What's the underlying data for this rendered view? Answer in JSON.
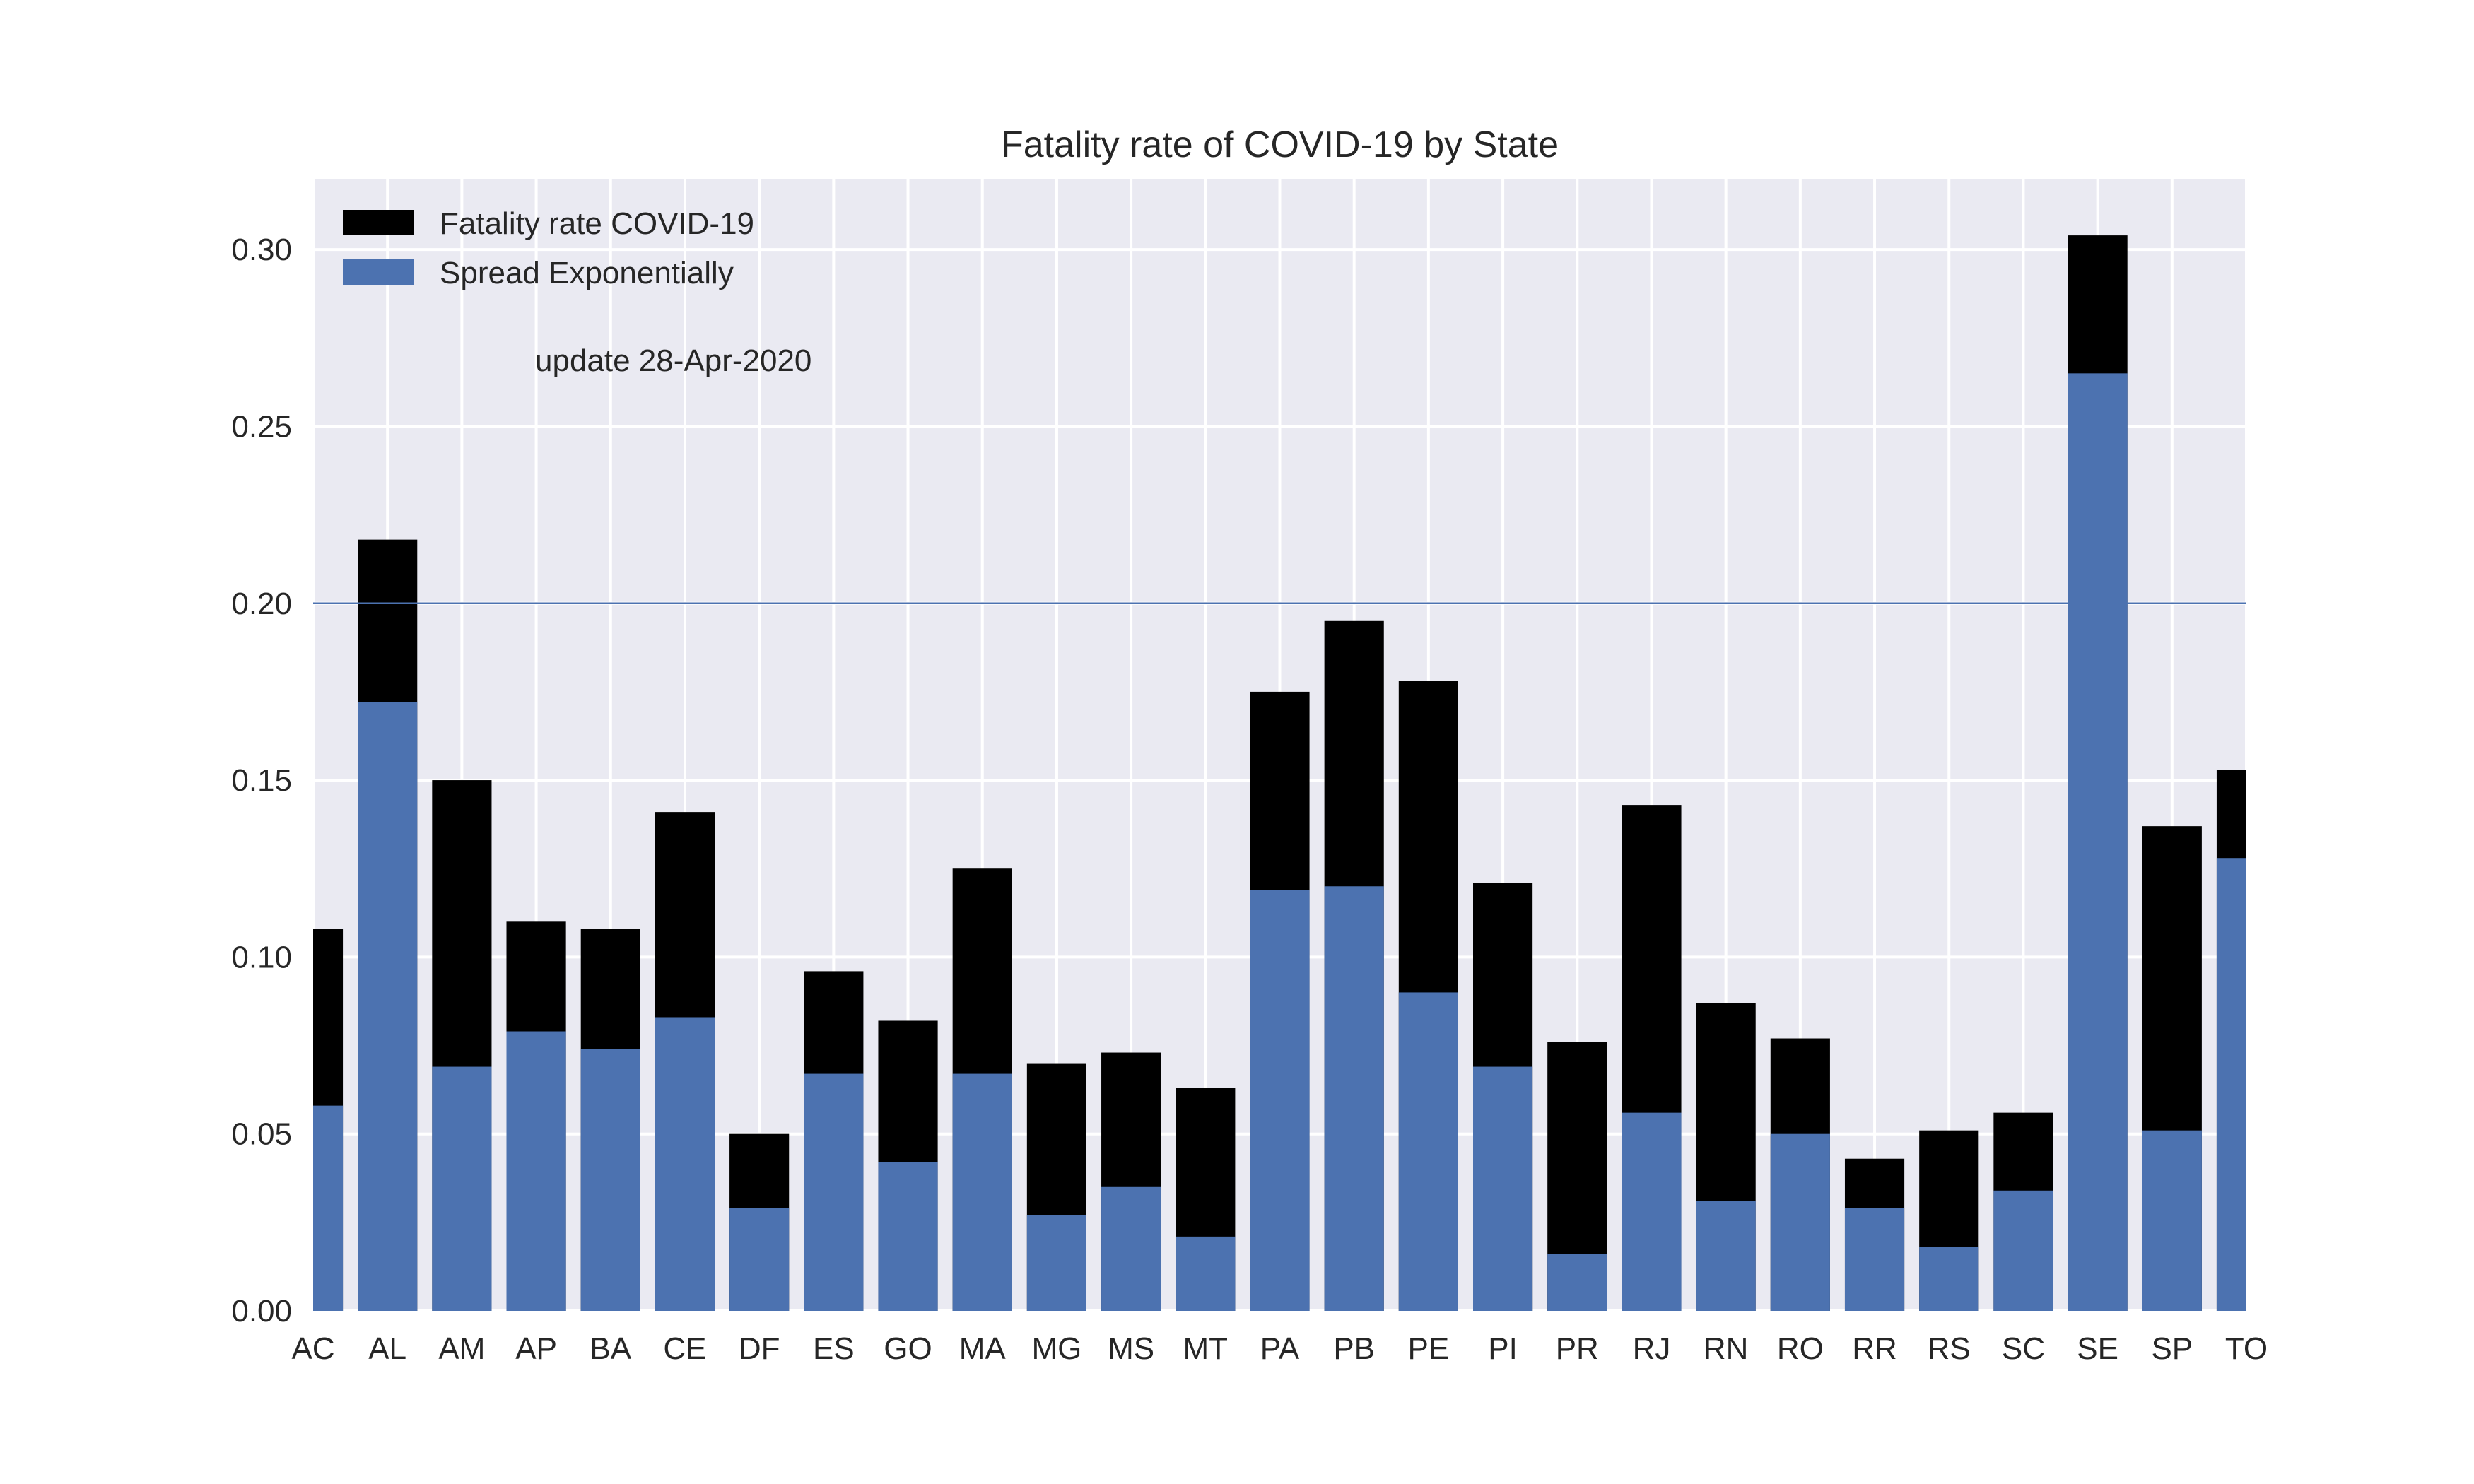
{
  "chart_data": {
    "type": "bar",
    "title": "Fatality rate of COVID-19 by State",
    "annotation": "update 28-Apr-2020",
    "xlabel": "",
    "ylabel": "",
    "ylim": [
      0,
      0.32
    ],
    "yticks": [
      0.0,
      0.05,
      0.1,
      0.15,
      0.2,
      0.25,
      0.3
    ],
    "ytick_labels": [
      "0.00",
      "0.05",
      "0.10",
      "0.15",
      "0.20",
      "0.25",
      "0.30"
    ],
    "reference_line": 0.2,
    "grid": true,
    "legend_position": "top-left",
    "categories": [
      "AC",
      "AL",
      "AM",
      "AP",
      "BA",
      "CE",
      "DF",
      "ES",
      "GO",
      "MA",
      "MG",
      "MS",
      "MT",
      "PA",
      "PB",
      "PE",
      "PI",
      "PR",
      "RJ",
      "RN",
      "RO",
      "RR",
      "RS",
      "SC",
      "SE",
      "SP",
      "TO"
    ],
    "series": [
      {
        "name": "Fatality rate COVID-19",
        "color": "#000000",
        "values": [
          0.108,
          0.218,
          0.15,
          0.11,
          0.108,
          0.141,
          0.05,
          0.096,
          0.082,
          0.125,
          0.07,
          0.073,
          0.063,
          0.175,
          0.195,
          0.178,
          0.121,
          0.076,
          0.143,
          0.087,
          0.077,
          0.043,
          0.051,
          0.056,
          0.304,
          0.137,
          0.153
        ]
      },
      {
        "name": "Spread Exponentially",
        "color": "#4C72B0",
        "values": [
          0.058,
          0.172,
          0.069,
          0.079,
          0.074,
          0.083,
          0.029,
          0.067,
          0.042,
          0.067,
          0.027,
          0.035,
          0.021,
          0.119,
          0.12,
          0.09,
          0.069,
          0.016,
          0.056,
          0.031,
          0.05,
          0.029,
          0.018,
          0.034,
          0.265,
          0.051,
          0.128
        ]
      }
    ]
  }
}
